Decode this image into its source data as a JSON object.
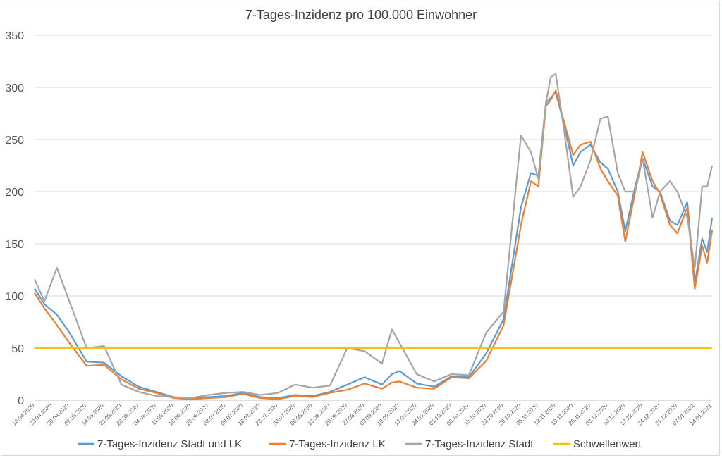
{
  "chart_data": {
    "type": "line",
    "title": "7-Tages-Inzidenz pro 100.000 Einwohner",
    "xlabel": "",
    "ylabel": "",
    "ylim": [
      0,
      350
    ],
    "y_ticks": [
      0,
      50,
      100,
      150,
      200,
      250,
      300,
      350
    ],
    "grid": true,
    "legend_position": "bottom",
    "x_start": "16.04.2020",
    "x_end": "14.01.2021",
    "x_tick_labels": [
      "16.04.2020",
      "23.04.2020",
      "30.04.2020",
      "07.05.2020",
      "14.05.2020",
      "21.05.2020",
      "28.05.2020",
      "04.06.2020",
      "11.06.2020",
      "18.06.2020",
      "25.06.2020",
      "02.07.2020",
      "09.07.2020",
      "16.07.2020",
      "23.07.2020",
      "30.07.2020",
      "06.08.2020",
      "13.08.2020",
      "20.08.2020",
      "27.08.2020",
      "03.09.2020",
      "10.09.2020",
      "17.09.2020",
      "24.09.2020",
      "01.10.2020",
      "08.10.2020",
      "15.10.2020",
      "22.10.2020",
      "29.10.2020",
      "05.11.2020",
      "12.11.2020",
      "19.11.2020",
      "26.11.2020",
      "03.12.2020",
      "10.12.2020",
      "17.12.2020",
      "24.12.2020",
      "31.12.2020",
      "07.01.2021",
      "14.01.2021"
    ],
    "series": [
      {
        "name": "7-Tages-Inzidenz Stadt und LK",
        "color": "#5b9bd5",
        "x": [
          "16.04.2020",
          "20.04.2020",
          "25.04.2020",
          "30.04.2020",
          "07.05.2020",
          "14.05.2020",
          "21.05.2020",
          "28.05.2020",
          "04.06.2020",
          "11.06.2020",
          "18.06.2020",
          "25.06.2020",
          "02.07.2020",
          "09.07.2020",
          "16.07.2020",
          "23.07.2020",
          "30.07.2020",
          "06.08.2020",
          "13.08.2020",
          "20.08.2020",
          "27.08.2020",
          "03.09.2020",
          "07.09.2020",
          "10.09.2020",
          "17.09.2020",
          "24.09.2020",
          "01.10.2020",
          "08.10.2020",
          "15.10.2020",
          "22.10.2020",
          "29.10.2020",
          "02.11.2020",
          "05.11.2020",
          "08.11.2020",
          "10.11.2020",
          "12.11.2020",
          "15.11.2020",
          "19.11.2020",
          "22.11.2020",
          "26.11.2020",
          "30.11.2020",
          "03.12.2020",
          "07.12.2020",
          "10.12.2020",
          "14.12.2020",
          "17.12.2020",
          "21.12.2020",
          "24.12.2020",
          "28.12.2020",
          "31.12.2020",
          "04.01.2021",
          "07.01.2021",
          "10.01.2021",
          "12.01.2021",
          "14.01.2021"
        ],
        "values": [
          107,
          92,
          82,
          65,
          37,
          36,
          23,
          13,
          8,
          3,
          2,
          3,
          4,
          7,
          3,
          2,
          5,
          4,
          8,
          15,
          22,
          15,
          25,
          28,
          16,
          13,
          23,
          22,
          45,
          78,
          185,
          218,
          215,
          285,
          290,
          295,
          268,
          225,
          238,
          245,
          228,
          222,
          200,
          162,
          205,
          232,
          205,
          200,
          172,
          168,
          190,
          112,
          155,
          142,
          175
        ]
      },
      {
        "name": "7-Tages-Inzidenz LK",
        "color": "#ed7d31",
        "x": [
          "16.04.2020",
          "20.04.2020",
          "25.04.2020",
          "30.04.2020",
          "07.05.2020",
          "14.05.2020",
          "21.05.2020",
          "28.05.2020",
          "04.06.2020",
          "11.06.2020",
          "18.06.2020",
          "25.06.2020",
          "02.07.2020",
          "09.07.2020",
          "16.07.2020",
          "23.07.2020",
          "30.07.2020",
          "06.08.2020",
          "13.08.2020",
          "20.08.2020",
          "27.08.2020",
          "03.09.2020",
          "07.09.2020",
          "10.09.2020",
          "17.09.2020",
          "24.09.2020",
          "01.10.2020",
          "08.10.2020",
          "15.10.2020",
          "22.10.2020",
          "29.10.2020",
          "02.11.2020",
          "05.11.2020",
          "08.11.2020",
          "10.11.2020",
          "12.11.2020",
          "15.11.2020",
          "19.11.2020",
          "22.11.2020",
          "26.11.2020",
          "30.11.2020",
          "03.12.2020",
          "07.12.2020",
          "10.12.2020",
          "14.12.2020",
          "17.12.2020",
          "21.12.2020",
          "24.12.2020",
          "28.12.2020",
          "31.12.2020",
          "04.01.2021",
          "07.01.2021",
          "10.01.2021",
          "12.01.2021",
          "14.01.2021"
        ],
        "values": [
          103,
          88,
          72,
          55,
          33,
          34,
          20,
          11,
          7,
          2,
          1,
          2,
          3,
          6,
          2,
          1,
          4,
          3,
          7,
          10,
          16,
          11,
          17,
          18,
          12,
          11,
          22,
          21,
          38,
          72,
          168,
          210,
          205,
          282,
          288,
          297,
          270,
          235,
          245,
          248,
          222,
          210,
          196,
          152,
          200,
          238,
          210,
          198,
          168,
          160,
          185,
          107,
          148,
          132,
          163
        ]
      },
      {
        "name": "7-Tages-Inzidenz Stadt",
        "color": "#a5a5a5",
        "x": [
          "16.04.2020",
          "20.04.2020",
          "25.04.2020",
          "30.04.2020",
          "07.05.2020",
          "14.05.2020",
          "21.05.2020",
          "28.05.2020",
          "04.06.2020",
          "11.06.2020",
          "18.06.2020",
          "25.06.2020",
          "02.07.2020",
          "09.07.2020",
          "16.07.2020",
          "23.07.2020",
          "30.07.2020",
          "06.08.2020",
          "13.08.2020",
          "20.08.2020",
          "27.08.2020",
          "03.09.2020",
          "07.09.2020",
          "10.09.2020",
          "17.09.2020",
          "24.09.2020",
          "01.10.2020",
          "08.10.2020",
          "15.10.2020",
          "22.10.2020",
          "29.10.2020",
          "02.11.2020",
          "05.11.2020",
          "08.11.2020",
          "10.11.2020",
          "12.11.2020",
          "15.11.2020",
          "19.11.2020",
          "22.11.2020",
          "26.11.2020",
          "30.11.2020",
          "03.12.2020",
          "07.12.2020",
          "10.12.2020",
          "14.12.2020",
          "17.12.2020",
          "21.12.2020",
          "24.12.2020",
          "28.12.2020",
          "31.12.2020",
          "04.01.2021",
          "07.01.2021",
          "10.01.2021",
          "12.01.2021",
          "14.01.2021"
        ],
        "values": [
          116,
          95,
          127,
          95,
          50,
          52,
          15,
          8,
          4,
          3,
          2,
          5,
          7,
          8,
          5,
          7,
          15,
          12,
          14,
          50,
          47,
          35,
          68,
          55,
          25,
          18,
          25,
          24,
          65,
          85,
          254,
          238,
          212,
          285,
          310,
          313,
          265,
          195,
          205,
          230,
          270,
          272,
          218,
          200,
          200,
          232,
          175,
          200,
          210,
          200,
          175,
          127,
          205,
          205,
          225
        ]
      },
      {
        "name": "Schwellenwert",
        "color": "#ffc000",
        "x": [
          "16.04.2020",
          "14.01.2021"
        ],
        "values": [
          50,
          50
        ]
      }
    ]
  }
}
